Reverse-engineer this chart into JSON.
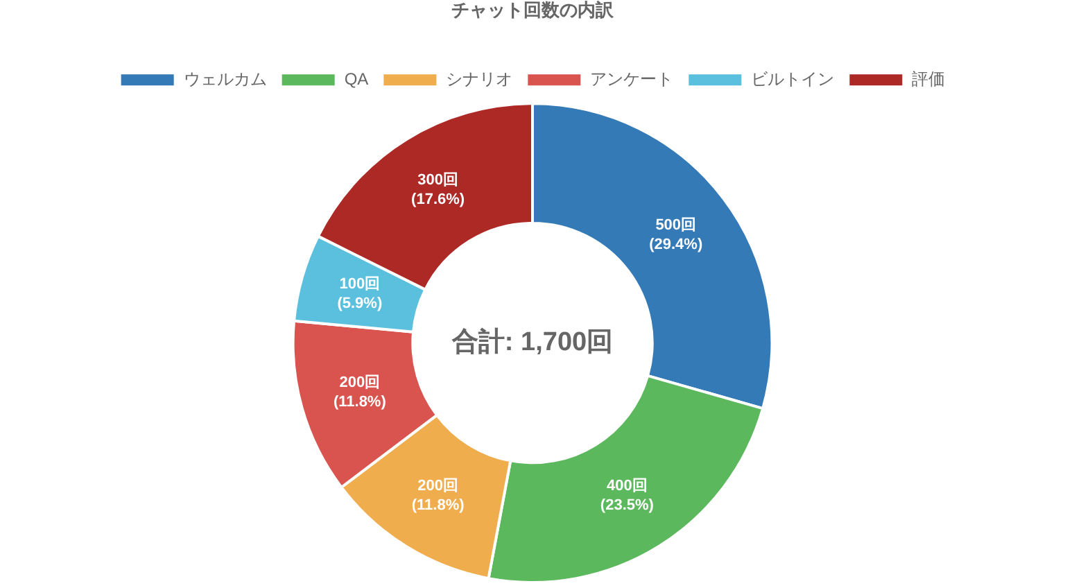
{
  "chart_data": {
    "type": "donut",
    "title": "チャット回数の内訳",
    "categories": [
      "ウェルカム",
      "QA",
      "シナリオ",
      "アンケート",
      "ビルトイン",
      "評価"
    ],
    "values": [
      500,
      400,
      200,
      200,
      100,
      300
    ],
    "colors": [
      "#337ab7",
      "#5cb85c",
      "#f0ad4e",
      "#d9534f",
      "#5bc0de",
      "#ac2925"
    ],
    "value_labels": [
      "500回\n(29.4%)",
      "400回\n(23.5%)",
      "200回\n(11.8%)",
      "200回\n(11.8%)",
      "100回\n(5.9%)",
      "300回\n(17.6%)"
    ],
    "legend": "top",
    "annotations": [
      "合計: 1,700回"
    ]
  }
}
